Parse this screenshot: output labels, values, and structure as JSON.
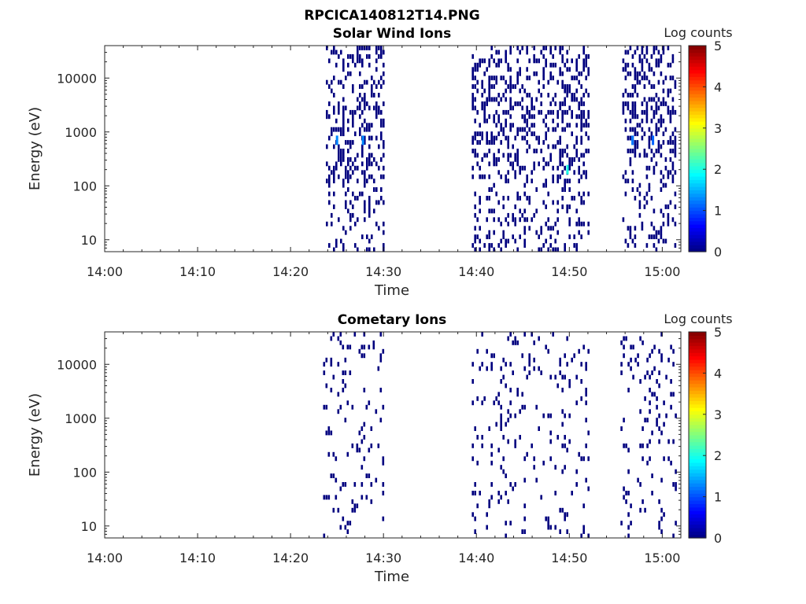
{
  "figure_title": "RPCICA140812T14.PNG",
  "colors": {
    "colormap": [
      "#00007f",
      "#0000ff",
      "#007fff",
      "#00ffff",
      "#7fff7f",
      "#ffff00",
      "#ff7f00",
      "#ff0000",
      "#7f0000"
    ],
    "axis": "#262626"
  },
  "chart_data": [
    {
      "type": "heatmap",
      "title": "Solar Wind Ions",
      "xlabel": "Time",
      "ylabel": "Energy (eV)",
      "colorbar_label": "Log counts",
      "xlim": [
        "14:00",
        "15:02"
      ],
      "ylim": [
        6,
        40000
      ],
      "yscale": "log",
      "xticks": [
        "14:00",
        "14:10",
        "14:20",
        "14:30",
        "14:40",
        "14:50",
        "15:00"
      ],
      "yticks": [
        "10",
        "100",
        "1000",
        "10000"
      ],
      "clim": [
        0,
        5
      ],
      "cticks": [
        "0",
        "1",
        "2",
        "3",
        "4",
        "5"
      ],
      "active_intervals": [
        [
          "14:23.8",
          "14:30.0"
        ],
        [
          "14:39.5",
          "14:52.2"
        ],
        [
          "14:55.7",
          "15:01.3"
        ]
      ],
      "peak_cells": [
        {
          "t": "14:25.0",
          "E": 700,
          "v": 1.3
        },
        {
          "t": "14:27.8",
          "E": 700,
          "v": 1.3
        },
        {
          "t": "14:49.8",
          "E": 200,
          "v": 2.0
        },
        {
          "t": "14:56.8",
          "E": 700,
          "v": 1.2
        },
        {
          "t": "14:59.0",
          "E": 700,
          "v": 1.1
        }
      ],
      "background_value": 0
    },
    {
      "type": "heatmap",
      "title": "Cometary Ions",
      "xlabel": "Time",
      "ylabel": "Energy (eV)",
      "colorbar_label": "Log counts",
      "xlim": [
        "14:00",
        "15:02"
      ],
      "ylim": [
        6,
        40000
      ],
      "yscale": "log",
      "xticks": [
        "14:00",
        "14:10",
        "14:20",
        "14:30",
        "14:40",
        "14:50",
        "15:00"
      ],
      "yticks": [
        "10",
        "100",
        "1000",
        "10000"
      ],
      "clim": [
        0,
        5
      ],
      "cticks": [
        "0",
        "1",
        "2",
        "3",
        "4",
        "5"
      ],
      "active_intervals": [
        [
          "14:23.5",
          "14:30.0"
        ],
        [
          "14:39.5",
          "14:52.0"
        ],
        [
          "14:55.5",
          "15:01.5"
        ]
      ],
      "peak_cells": [],
      "background_value": 0
    }
  ]
}
